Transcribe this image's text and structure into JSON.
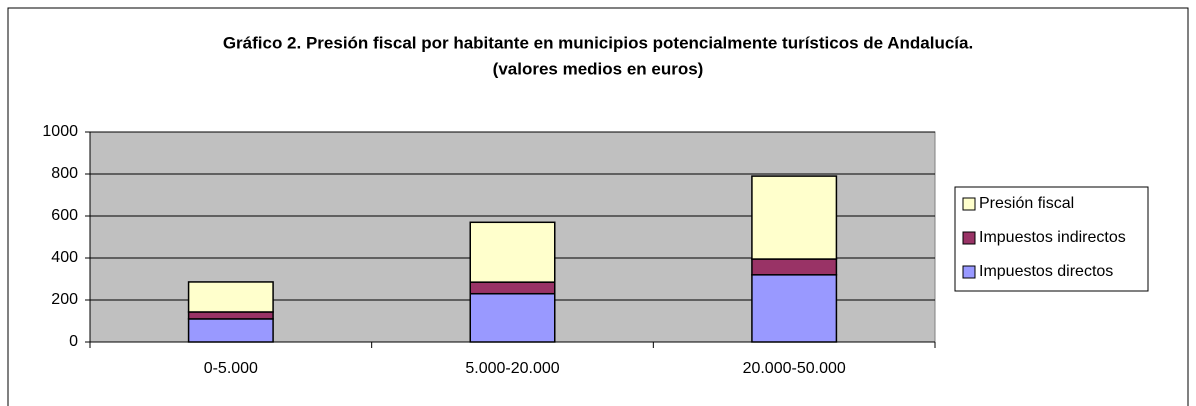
{
  "chart_data": {
    "type": "stacked_bar",
    "title": "Gráfico 2. Presión fiscal por habitante en municipios potencialmente turísticos de Andalucía.",
    "subtitle": "(valores medios en euros)",
    "categories": [
      "0-5.000",
      "5.000-20.000",
      "20.000-50.000"
    ],
    "series": [
      {
        "name": "Impuestos directos",
        "color": "#9999ff",
        "values": [
          110,
          230,
          320
        ]
      },
      {
        "name": "Impuestos indirectos",
        "color": "#993366",
        "values": [
          33,
          55,
          75
        ]
      },
      {
        "name": "Presión fiscal",
        "color": "#ffffcc",
        "values": [
          143,
          285,
          395
        ]
      }
    ],
    "ylim": [
      0,
      1000
    ],
    "yticks": [
      0,
      200,
      400,
      600,
      800,
      1000
    ],
    "grid": true,
    "plot_background": "#c0c0c0",
    "legend": "right"
  }
}
